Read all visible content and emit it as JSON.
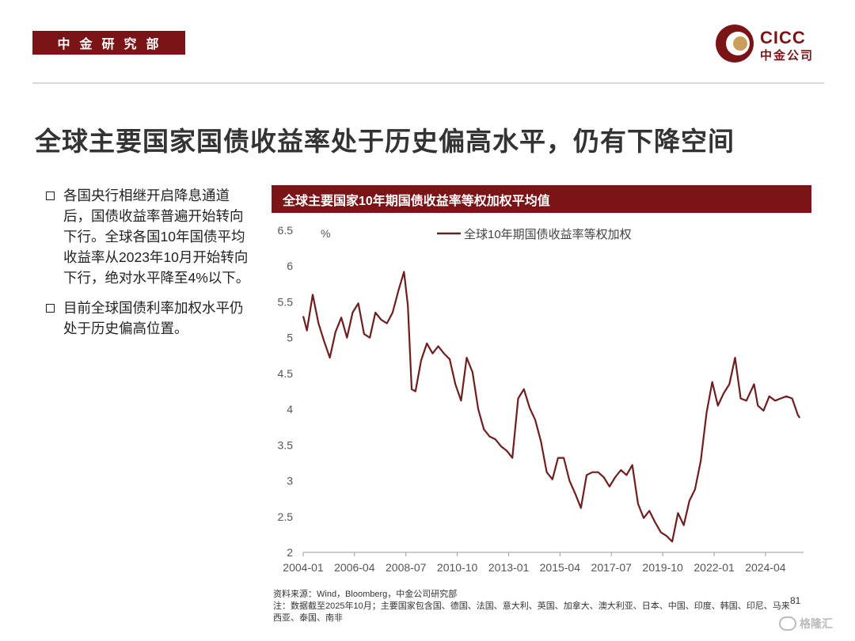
{
  "header": {
    "department": "中金研究部",
    "logo_en": "CICC",
    "logo_cn": "中金公司"
  },
  "headline": "全球主要国家国债收益率处于历史偏高水平，仍有下降空间",
  "bullets": [
    {
      "text": "各国央行相继开启降息通道后，国债收益率普遍开始转向下行。全球各国10年国债平均收益率从2023年10月开始转向下行，绝对水平降至4%以下。"
    },
    {
      "text": "目前全球国债利率加权水平仍处于历史偏高位置。"
    }
  ],
  "chart_title": "全球主要国家10年期国债收益率等权加权平均值",
  "chart_data": {
    "type": "line",
    "ylabel": "%",
    "ylim": [
      2,
      6.5
    ],
    "yticks": [
      "6.5",
      "6",
      "5.5",
      "5",
      "4.5",
      "4",
      "3.5",
      "3",
      "2.5",
      "2"
    ],
    "xticks": [
      "2004-01",
      "2006-04",
      "2008-07",
      "2010-10",
      "2013-01",
      "2015-04",
      "2017-07",
      "2019-10",
      "2022-01",
      "2024-04"
    ],
    "legend_position": "top",
    "series": [
      {
        "name": "全球10年期国债收益率等权加权",
        "color": "#6e1e1e",
        "x": [
          "2004-01",
          "2004-03",
          "2004-06",
          "2004-09",
          "2004-12",
          "2005-03",
          "2005-06",
          "2005-09",
          "2005-12",
          "2006-03",
          "2006-06",
          "2006-09",
          "2006-12",
          "2007-03",
          "2007-06",
          "2007-09",
          "2007-12",
          "2008-03",
          "2008-06",
          "2008-08",
          "2008-10",
          "2008-12",
          "2009-03",
          "2009-06",
          "2009-09",
          "2009-12",
          "2010-03",
          "2010-06",
          "2010-09",
          "2010-12",
          "2011-03",
          "2011-06",
          "2011-09",
          "2011-12",
          "2012-03",
          "2012-06",
          "2012-09",
          "2012-12",
          "2013-03",
          "2013-06",
          "2013-09",
          "2013-12",
          "2014-03",
          "2014-06",
          "2014-09",
          "2014-12",
          "2015-03",
          "2015-06",
          "2015-09",
          "2015-12",
          "2016-03",
          "2016-06",
          "2016-09",
          "2016-12",
          "2017-03",
          "2017-06",
          "2017-09",
          "2017-12",
          "2018-03",
          "2018-06",
          "2018-09",
          "2018-12",
          "2019-03",
          "2019-06",
          "2019-09",
          "2019-12",
          "2020-03",
          "2020-06",
          "2020-09",
          "2020-12",
          "2021-03",
          "2021-06",
          "2021-09",
          "2021-12",
          "2022-03",
          "2022-06",
          "2022-09",
          "2022-12",
          "2023-03",
          "2023-06",
          "2023-10",
          "2023-12",
          "2024-03",
          "2024-06",
          "2024-09",
          "2024-12",
          "2025-03",
          "2025-06",
          "2025-09",
          "2025-10"
        ],
        "values": [
          5.3,
          5.1,
          5.6,
          5.2,
          4.95,
          4.72,
          5.08,
          5.28,
          5.0,
          5.35,
          5.48,
          5.05,
          5.0,
          5.35,
          5.25,
          5.2,
          5.35,
          5.65,
          5.92,
          5.45,
          4.28,
          4.25,
          4.68,
          4.92,
          4.78,
          4.88,
          4.78,
          4.7,
          4.35,
          4.12,
          4.72,
          4.52,
          4.0,
          3.72,
          3.62,
          3.58,
          3.48,
          3.42,
          3.32,
          4.15,
          4.28,
          4.02,
          3.85,
          3.55,
          3.12,
          3.02,
          3.32,
          3.32,
          3.0,
          2.82,
          2.62,
          3.08,
          3.12,
          3.12,
          3.05,
          2.92,
          3.05,
          3.15,
          3.08,
          3.22,
          2.68,
          2.48,
          2.58,
          2.42,
          2.28,
          2.23,
          2.15,
          2.55,
          2.38,
          2.72,
          2.88,
          3.28,
          3.95,
          4.38,
          4.05,
          4.22,
          4.35,
          4.72,
          4.15,
          4.12,
          4.35,
          4.05,
          3.98,
          4.18,
          4.12,
          4.15,
          4.18,
          4.15,
          3.92,
          3.88
        ]
      }
    ]
  },
  "footer": {
    "source_line": "资料来源：Wind，Bloomberg，中金公司研究部",
    "note_line": "注：数据截至2025年10月；主要国家包含国、德国、法国、意大利、英国、加拿大、澳大利亚、日本、中国、印度、韩国、印尼、马来西亚、泰国、南非",
    "page_number": "81",
    "watermark": "格隆汇"
  }
}
